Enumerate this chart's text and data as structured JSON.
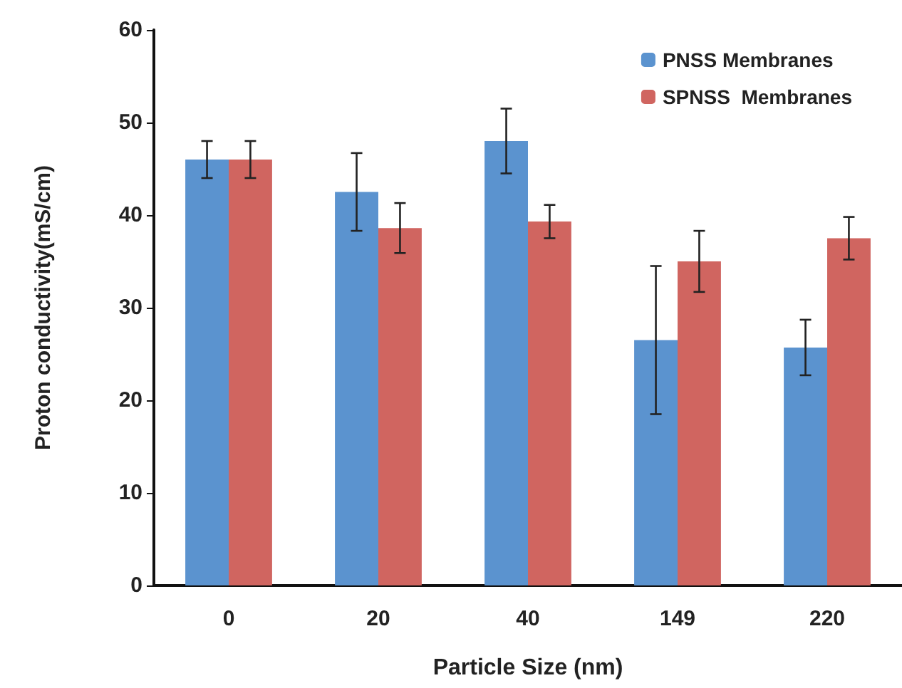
{
  "chart_data": {
    "type": "bar",
    "xlabel": "Particle Size (nm)",
    "ylabel": "Proton conductivity(mS/cm)",
    "categories": [
      "0",
      "20",
      "40",
      "149",
      "220"
    ],
    "series": [
      {
        "name": "PNSS Membranes",
        "color": "#5b93cf",
        "values": [
          46,
          42.5,
          48,
          26.5,
          25.7
        ],
        "errors": [
          2,
          4.2,
          3.5,
          8,
          3
        ]
      },
      {
        "name": "SPNSS  Membranes",
        "color": "#d06560",
        "values": [
          46,
          38.6,
          39.3,
          35,
          37.5
        ],
        "errors": [
          2,
          2.7,
          1.8,
          3.3,
          2.3
        ]
      }
    ],
    "ylim": [
      0,
      60
    ],
    "yticks": [
      0,
      10,
      20,
      30,
      40,
      50,
      60
    ],
    "grid": false,
    "legend": "top right"
  }
}
